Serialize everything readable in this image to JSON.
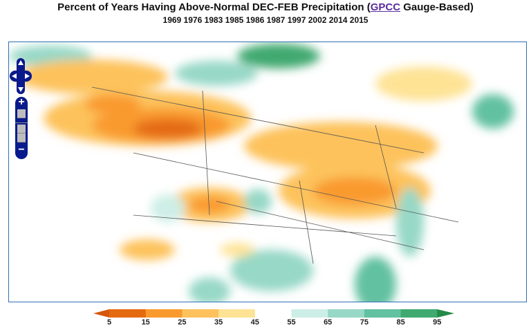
{
  "title": {
    "prefix": "Percent of Years Having Above-Normal DEC-FEB Precipitation (",
    "link": "GPCC",
    "suffix": " Gauge-Based)"
  },
  "years": "1969 1976 1983 1985 1986 1987 1997 2002 2014 2015",
  "controls": {
    "zoom_in": "+",
    "zoom_out": "−"
  },
  "legend": {
    "ticks": [
      "5",
      "15",
      "25",
      "35",
      "45",
      "55",
      "65",
      "75",
      "85",
      "95"
    ],
    "colors": [
      "#e46a12",
      "#f99a2f",
      "#fdc25b",
      "#fee395",
      "#ffffff",
      "#cdeee6",
      "#97d8c6",
      "#62c1a0",
      "#3fa96f"
    ],
    "low_color": "#d5570b",
    "high_color": "#238a48"
  }
}
